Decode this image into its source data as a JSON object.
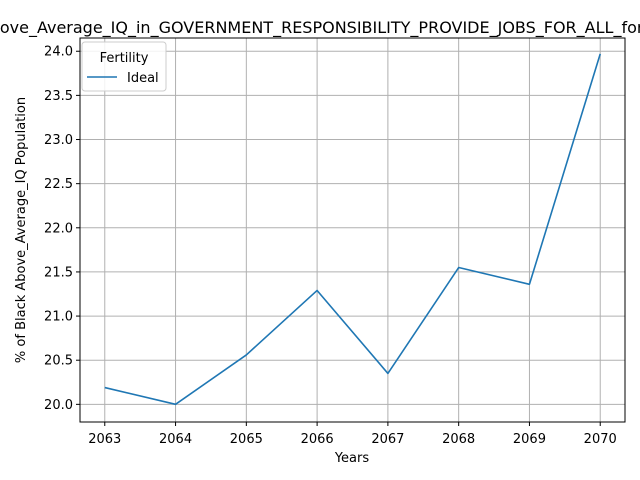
{
  "chart_data": {
    "type": "line",
    "title": "Percentage_of_Black_Above_Average_IQ_in_GOVERNMENT_RESPONSIBILITY_PROVIDE_JOBS_FOR_ALL_for_Black_Above_Average_IQ",
    "xlabel": "Years",
    "ylabel": "% of Black Above_Average_IQ Population",
    "x": [
      2063,
      2064,
      2065,
      2066,
      2067,
      2068,
      2069,
      2070
    ],
    "x_ticks": [
      "2063",
      "2064",
      "2065",
      "2066",
      "2067",
      "2068",
      "2069",
      "2070"
    ],
    "y_ticks": [
      "20.0",
      "20.5",
      "21.0",
      "21.5",
      "22.0",
      "22.5",
      "23.0",
      "23.5",
      "24.0"
    ],
    "y_tick_values": [
      20.0,
      20.5,
      21.0,
      21.5,
      22.0,
      22.5,
      23.0,
      23.5,
      24.0
    ],
    "ylim": [
      19.8,
      24.15
    ],
    "xlim": [
      2062.65,
      2070.35
    ],
    "grid": true,
    "legend": {
      "title": "Fertility",
      "placement": "top-left"
    },
    "series": [
      {
        "name": "Ideal",
        "color": "#1f77b4",
        "values": [
          20.19,
          20.0,
          20.56,
          21.29,
          20.35,
          21.55,
          21.36,
          23.97
        ]
      }
    ]
  }
}
